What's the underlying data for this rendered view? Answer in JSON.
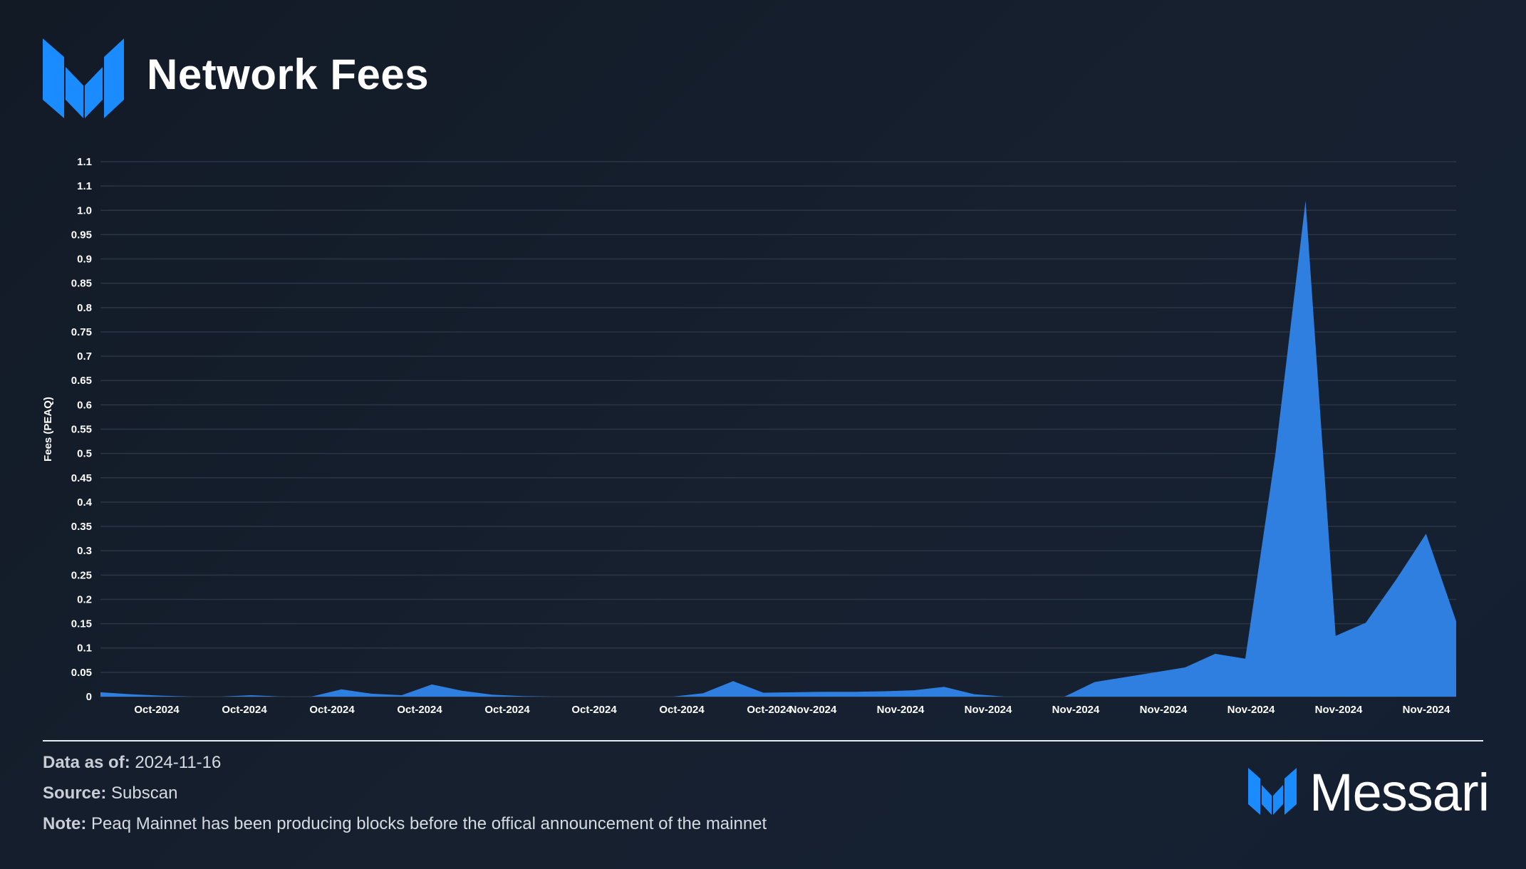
{
  "header": {
    "title": "Network Fees"
  },
  "logo": {
    "icon": "messari-logo-icon"
  },
  "colors": {
    "accent": "#2f7fe0",
    "logo_blue": "#1a8cff",
    "grid": "#2b3545",
    "background": "#141d2a"
  },
  "chart_data": {
    "type": "area",
    "title": "Network Fees",
    "xlabel": "",
    "ylabel": "Fees (PEAQ)",
    "ylim": [
      0,
      1.1
    ],
    "grid": true,
    "legend": "none",
    "y_tick_labels": [
      "0",
      "0.05",
      "0.1",
      "0.15",
      "0.2",
      "0.25",
      "0.3",
      "0.35",
      "0.4",
      "0.45",
      "0.5",
      "0.55",
      "0.6",
      "0.65",
      "0.7",
      "0.75",
      "0.8",
      "0.85",
      "0.9",
      "0.95",
      "1.0",
      "1.1",
      "1.1"
    ],
    "x_tick_labels": [
      "Oct-2024",
      "Oct-2024",
      "Oct-2024",
      "Oct-2024",
      "Oct-2024",
      "Oct-2024",
      "Oct-2024",
      "Oct-2024",
      "Nov-2024",
      "Nov-2024",
      "Nov-2024",
      "Nov-2024",
      "Nov-2024",
      "Nov-2024",
      "Nov-2024",
      "Nov-2024"
    ],
    "x": [
      "2024-10-02",
      "2024-10-03",
      "2024-10-04",
      "2024-10-05",
      "2024-10-06",
      "2024-10-07",
      "2024-10-08",
      "2024-10-09",
      "2024-10-10",
      "2024-10-11",
      "2024-10-12",
      "2024-10-13",
      "2024-10-14",
      "2024-10-15",
      "2024-10-16",
      "2024-10-17",
      "2024-10-18",
      "2024-10-19",
      "2024-10-20",
      "2024-10-21",
      "2024-10-22",
      "2024-10-23",
      "2024-10-24",
      "2024-10-25",
      "2024-10-26",
      "2024-10-27",
      "2024-10-28",
      "2024-10-29",
      "2024-10-30",
      "2024-10-31",
      "2024-11-01",
      "2024-11-02",
      "2024-11-03",
      "2024-11-04",
      "2024-11-05",
      "2024-11-06",
      "2024-11-07",
      "2024-11-08",
      "2024-11-09",
      "2024-11-10",
      "2024-11-11",
      "2024-11-12",
      "2024-11-13",
      "2024-11-14",
      "2024-11-15",
      "2024-11-16"
    ],
    "series": [
      {
        "values": [
          0.009,
          0.005,
          0.002,
          0.0,
          0.0,
          0.003,
          0.0,
          0.0,
          0.015,
          0.006,
          0.003,
          0.025,
          0.012,
          0.004,
          0.001,
          0.0,
          0.0,
          0.0,
          0.0,
          0.0,
          0.007,
          0.032,
          0.008,
          0.009,
          0.01,
          0.01,
          0.011,
          0.013,
          0.02,
          0.005,
          0.0,
          0.0,
          0.0,
          0.03,
          0.04,
          0.05,
          0.06,
          0.088,
          0.078,
          0.5,
          1.02,
          0.125,
          0.152,
          0.24,
          0.335,
          0.155
        ]
      }
    ]
  },
  "footer": {
    "data_as_of_label": "Data as of:",
    "data_as_of_value": "2024-11-16",
    "source_label": "Source:",
    "source_value": "Subscan",
    "note_label": "Note:",
    "note_value": "Peaq Mainnet has been producing blocks before the offical announcement of the mainnet"
  },
  "brand": {
    "name": "Messari",
    "icon": "messari-wordmark-icon"
  }
}
